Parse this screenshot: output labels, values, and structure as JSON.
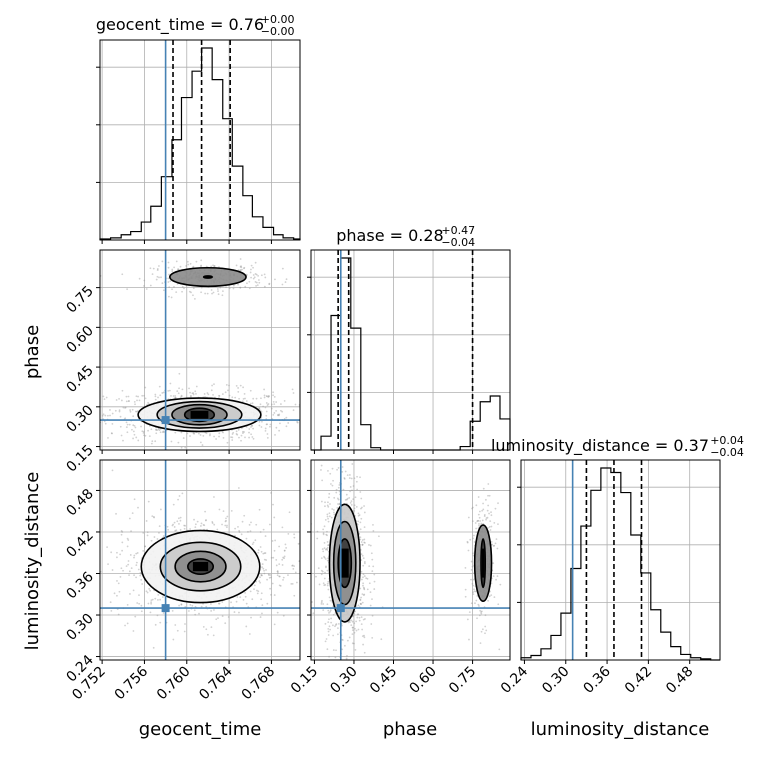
{
  "chart_data": {
    "type": "corner",
    "parameters": [
      "geocent_time",
      "phase",
      "luminosity_distance"
    ],
    "truths": {
      "geocent_time": 0.758,
      "phase": 0.25,
      "luminosity_distance": 0.31
    },
    "truth_color": "#4682b4",
    "quantiles": [
      0.16,
      0.5,
      0.84
    ],
    "titles": [
      {
        "parameter": "geocent_time",
        "text": "geocent_time = 0.76",
        "sup": "+0.00",
        "sub": "−0.00"
      },
      {
        "parameter": "phase",
        "text": "phase = 0.28",
        "sup": "+0.47",
        "sub": "−0.04"
      },
      {
        "parameter": "luminosity_distance",
        "text": "luminosity_distance = 0.37",
        "sup": "+0.04",
        "sub": "−0.04"
      }
    ],
    "axes": {
      "geocent_time": {
        "label": "geocent_time",
        "range": [
          0.7518,
          0.7707
        ],
        "ticks": [
          0.752,
          0.756,
          0.76,
          0.764,
          0.768
        ],
        "tick_labels": [
          "0.752",
          "0.756",
          "0.760",
          "0.764",
          "0.768"
        ]
      },
      "phase": {
        "label": "phase",
        "range": [
          0.137,
          0.892
        ],
        "ticks": [
          0.15,
          0.3,
          0.45,
          0.6,
          0.75
        ],
        "tick_labels": [
          "0.15",
          "0.30",
          "0.45",
          "0.60",
          "0.75"
        ]
      },
      "luminosity_distance": {
        "label": "luminosity_distance",
        "range": [
          0.235,
          0.524
        ],
        "ticks": [
          0.24,
          0.3,
          0.36,
          0.42,
          0.48
        ],
        "tick_labels": [
          "0.24",
          "0.30",
          "0.36",
          "0.42",
          "0.48"
        ]
      }
    },
    "histograms": {
      "geocent_time": {
        "quantile_values": [
          0.7587,
          0.7614,
          0.7641
        ],
        "bin_edges": [
          0.7518,
          0.7528,
          0.7538,
          0.7547,
          0.7557,
          0.7566,
          0.7576,
          0.7586,
          0.7595,
          0.7605,
          0.7614,
          0.7624,
          0.7634,
          0.7643,
          0.7653,
          0.7662,
          0.7672,
          0.7682,
          0.7691,
          0.7701,
          0.7707
        ],
        "counts": [
          1,
          2,
          5,
          8,
          17,
          32,
          60,
          95,
          135,
          160,
          182,
          152,
          115,
          70,
          42,
          22,
          12,
          5,
          2,
          1
        ]
      },
      "phase": {
        "quantile_values": [
          0.24,
          0.28,
          0.75
        ],
        "bin_edges": [
          0.137,
          0.175,
          0.213,
          0.25,
          0.288,
          0.326,
          0.364,
          0.401,
          0.439,
          0.477,
          0.515,
          0.552,
          0.59,
          0.628,
          0.666,
          0.703,
          0.741,
          0.779,
          0.817,
          0.854,
          0.892
        ],
        "counts": [
          0,
          12,
          117,
          167,
          106,
          22,
          2,
          0,
          0,
          0,
          0,
          0,
          0,
          0,
          0,
          3,
          25,
          42,
          47,
          27
        ]
      },
      "luminosity_distance": {
        "quantile_values": [
          0.33,
          0.37,
          0.41
        ],
        "bin_edges": [
          0.235,
          0.2495,
          0.264,
          0.2785,
          0.293,
          0.3075,
          0.322,
          0.3365,
          0.351,
          0.3655,
          0.38,
          0.3945,
          0.409,
          0.4235,
          0.438,
          0.4525,
          0.467,
          0.4815,
          0.496,
          0.5105,
          0.524
        ],
        "counts": [
          2,
          4,
          10,
          22,
          42,
          82,
          120,
          152,
          172,
          168,
          150,
          112,
          78,
          45,
          25,
          12,
          5,
          2,
          1,
          0
        ]
      }
    },
    "contours_2d": [
      {
        "x": "geocent_time",
        "y": "phase",
        "modes": [
          {
            "x": 0.7612,
            "y": 0.27,
            "levels": [
              [
                0.0014,
                0.025
              ],
              [
                0.0026,
                0.038
              ],
              [
                0.004,
                0.05
              ],
              [
                0.0058,
                0.063
              ]
            ]
          },
          {
            "x": 0.762,
            "y": 0.79,
            "levels": [
              [
                0.0004,
                0.004
              ],
              [
                0.0036,
                0.035
              ]
            ]
          }
        ]
      },
      {
        "x": "geocent_time",
        "y": "luminosity_distance",
        "modes": [
          {
            "x": 0.7613,
            "y": 0.37,
            "levels": [
              [
                0.0012,
                0.011
              ],
              [
                0.0024,
                0.022
              ],
              [
                0.0038,
                0.035
              ],
              [
                0.0056,
                0.052
              ]
            ]
          }
        ]
      },
      {
        "x": "phase",
        "y": "luminosity_distance",
        "modes": [
          {
            "x": 0.265,
            "y": 0.375,
            "levels": [
              [
                0.025,
                0.035
              ],
              [
                0.042,
                0.06
              ],
              [
                0.058,
                0.085
              ]
            ]
          },
          {
            "x": 0.79,
            "y": 0.375,
            "levels": [
              [
                0.008,
                0.035
              ],
              [
                0.032,
                0.055
              ]
            ]
          }
        ]
      }
    ]
  }
}
